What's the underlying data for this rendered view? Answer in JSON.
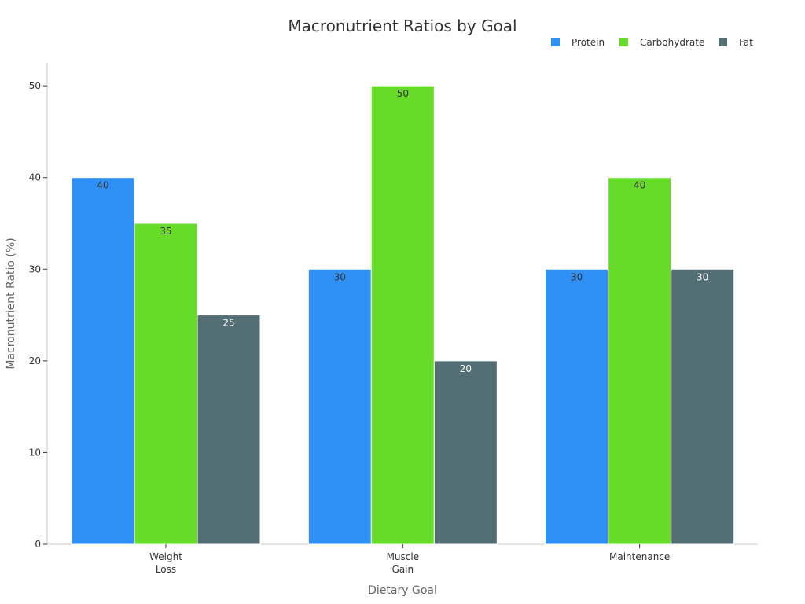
{
  "chart_data": {
    "type": "bar",
    "title": "Macronutrient Ratios by Goal",
    "xlabel": "Dietary Goal",
    "ylabel": "Macronutrient Ratio (%)",
    "categories": [
      [
        "Weight",
        "Loss"
      ],
      [
        "Muscle",
        "Gain"
      ],
      [
        "Maintenance"
      ]
    ],
    "series": [
      {
        "name": "Protein",
        "color": "#2E90F5",
        "label_color": "#333333",
        "values": [
          40,
          30,
          30
        ]
      },
      {
        "name": "Carbohydrate",
        "color": "#66DC29",
        "label_color": "#333333",
        "values": [
          35,
          50,
          40
        ]
      },
      {
        "name": "Fat",
        "color": "#546E76",
        "label_color": "#ffffff",
        "values": [
          25,
          20,
          30
        ]
      }
    ],
    "ylim": [
      0,
      52.5
    ],
    "yticks": [
      0,
      10,
      20,
      30,
      40,
      50
    ],
    "grid": false,
    "legend_position": "top-right"
  }
}
